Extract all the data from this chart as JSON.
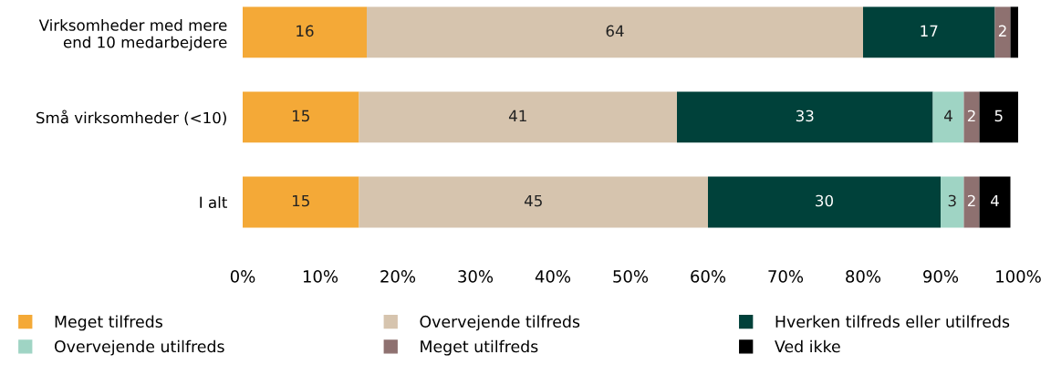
{
  "chart_data": {
    "type": "bar",
    "orientation": "horizontal",
    "stacked": true,
    "categories": [
      "Virksomheder med mere\nend 10 medarbejdere",
      "Små virksomheder (<10)",
      "I alt"
    ],
    "series": [
      {
        "name": "Meget tilfreds",
        "color": "#f4a937",
        "values": [
          16,
          15,
          15
        ],
        "value_labels": [
          "16",
          "15",
          "15"
        ]
      },
      {
        "name": "Overvejende tilfreds",
        "color": "#d6c4ae",
        "values": [
          64,
          41,
          45
        ],
        "value_labels": [
          "64",
          "41",
          "45"
        ]
      },
      {
        "name": "Hverken tilfreds eller utilfreds",
        "color": "#00413a",
        "values": [
          17,
          33,
          30
        ],
        "value_labels": [
          "17",
          "33",
          "30"
        ]
      },
      {
        "name": "Overvejende utilfreds",
        "color": "#9fd4c4",
        "values": [
          0,
          4,
          3
        ],
        "value_labels": [
          null,
          "4",
          "3"
        ]
      },
      {
        "name": "Meget utilfreds",
        "color": "#8e7170",
        "values": [
          2,
          2,
          2
        ],
        "value_labels": [
          "2",
          "2",
          "2"
        ]
      },
      {
        "name": "Ved ikke",
        "color": "#000000",
        "values": [
          1,
          5,
          4
        ],
        "value_labels": [
          null,
          "5",
          "4"
        ]
      }
    ],
    "xlim": [
      0,
      100
    ],
    "xticks": [
      {
        "value": 0,
        "label": "0%"
      },
      {
        "value": 10,
        "label": "10%"
      },
      {
        "value": 20,
        "label": "20%"
      },
      {
        "value": 30,
        "label": "30%"
      },
      {
        "value": 40,
        "label": "40%"
      },
      {
        "value": 50,
        "label": "50%"
      },
      {
        "value": 60,
        "label": "60%"
      },
      {
        "value": 70,
        "label": "70%"
      },
      {
        "value": 80,
        "label": "80%"
      },
      {
        "value": 90,
        "label": "90%"
      },
      {
        "value": 100,
        "label": "100%"
      }
    ],
    "grid": false,
    "legend": "bottom"
  }
}
